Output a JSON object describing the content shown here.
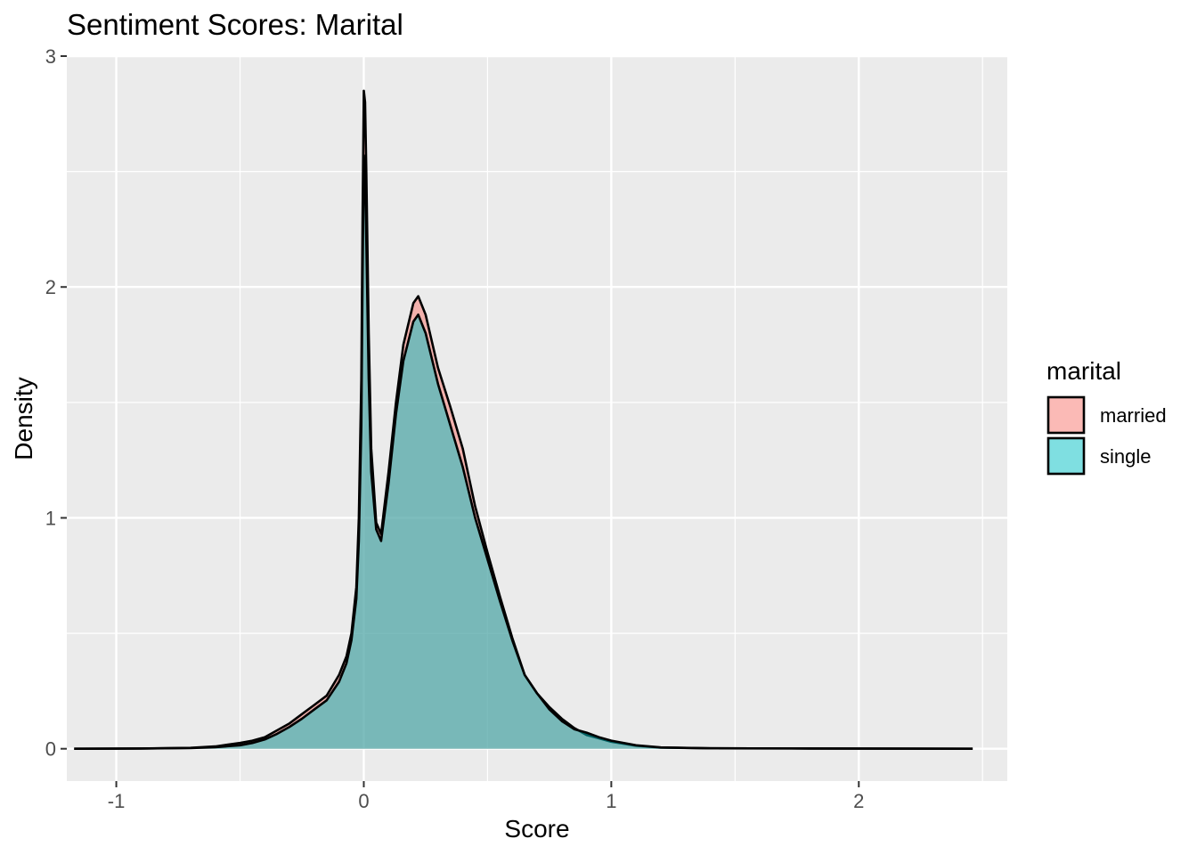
{
  "chart_data": {
    "type": "area",
    "subtype": "density",
    "title": "Sentiment Scores: Marital",
    "xlabel": "Score",
    "ylabel": "Density",
    "xlim": [
      -1.2,
      2.6
    ],
    "ylim": [
      -0.14,
      3.0
    ],
    "x_ticks": [
      -1,
      0,
      1,
      2
    ],
    "x_tick_labels": [
      "-1",
      "0",
      "1",
      "2"
    ],
    "y_ticks": [
      0,
      1,
      2,
      3
    ],
    "y_tick_labels": [
      "0",
      "1",
      "2",
      "3"
    ],
    "grid": true,
    "legend": {
      "title": "marital",
      "position": "right"
    },
    "series": [
      {
        "name": "married",
        "color": "#F8766D",
        "points": [
          [
            -1.17,
            0
          ],
          [
            -0.9,
            0.001
          ],
          [
            -0.7,
            0.004
          ],
          [
            -0.6,
            0.01
          ],
          [
            -0.5,
            0.025
          ],
          [
            -0.45,
            0.035
          ],
          [
            -0.4,
            0.05
          ],
          [
            -0.35,
            0.08
          ],
          [
            -0.3,
            0.11
          ],
          [
            -0.25,
            0.15
          ],
          [
            -0.2,
            0.19
          ],
          [
            -0.15,
            0.23
          ],
          [
            -0.1,
            0.32
          ],
          [
            -0.07,
            0.4
          ],
          [
            -0.05,
            0.5
          ],
          [
            -0.03,
            0.7
          ],
          [
            -0.02,
            1.0
          ],
          [
            -0.01,
            1.6
          ],
          [
            -0.005,
            2.3
          ],
          [
            0.0,
            2.85
          ],
          [
            0.005,
            2.8
          ],
          [
            0.01,
            2.5
          ],
          [
            0.02,
            1.8
          ],
          [
            0.03,
            1.3
          ],
          [
            0.05,
            0.98
          ],
          [
            0.07,
            0.93
          ],
          [
            0.1,
            1.2
          ],
          [
            0.13,
            1.5
          ],
          [
            0.16,
            1.75
          ],
          [
            0.2,
            1.93
          ],
          [
            0.22,
            1.96
          ],
          [
            0.25,
            1.88
          ],
          [
            0.3,
            1.65
          ],
          [
            0.35,
            1.48
          ],
          [
            0.4,
            1.3
          ],
          [
            0.45,
            1.05
          ],
          [
            0.5,
            0.85
          ],
          [
            0.55,
            0.66
          ],
          [
            0.6,
            0.48
          ],
          [
            0.65,
            0.32
          ],
          [
            0.7,
            0.24
          ],
          [
            0.75,
            0.18
          ],
          [
            0.8,
            0.13
          ],
          [
            0.85,
            0.09
          ],
          [
            0.9,
            0.06
          ],
          [
            0.95,
            0.045
          ],
          [
            1.0,
            0.03
          ],
          [
            1.1,
            0.013
          ],
          [
            1.2,
            0.005
          ],
          [
            1.4,
            0.002
          ],
          [
            1.8,
            0.001
          ],
          [
            2.46,
            0
          ]
        ]
      },
      {
        "name": "single",
        "color": "#00BFC4",
        "points": [
          [
            -1.17,
            0
          ],
          [
            -0.9,
            0.001
          ],
          [
            -0.7,
            0.003
          ],
          [
            -0.6,
            0.007
          ],
          [
            -0.5,
            0.015
          ],
          [
            -0.45,
            0.025
          ],
          [
            -0.4,
            0.04
          ],
          [
            -0.35,
            0.065
          ],
          [
            -0.3,
            0.095
          ],
          [
            -0.25,
            0.13
          ],
          [
            -0.2,
            0.17
          ],
          [
            -0.15,
            0.21
          ],
          [
            -0.1,
            0.29
          ],
          [
            -0.07,
            0.37
          ],
          [
            -0.05,
            0.47
          ],
          [
            -0.03,
            0.65
          ],
          [
            -0.02,
            0.9
          ],
          [
            -0.01,
            1.4
          ],
          [
            -0.005,
            2.05
          ],
          [
            0.0,
            2.57
          ],
          [
            0.005,
            2.5
          ],
          [
            0.01,
            2.2
          ],
          [
            0.02,
            1.6
          ],
          [
            0.03,
            1.2
          ],
          [
            0.05,
            0.95
          ],
          [
            0.07,
            0.9
          ],
          [
            0.1,
            1.15
          ],
          [
            0.13,
            1.45
          ],
          [
            0.16,
            1.68
          ],
          [
            0.2,
            1.85
          ],
          [
            0.22,
            1.88
          ],
          [
            0.25,
            1.8
          ],
          [
            0.3,
            1.58
          ],
          [
            0.35,
            1.4
          ],
          [
            0.4,
            1.22
          ],
          [
            0.45,
            1.0
          ],
          [
            0.5,
            0.82
          ],
          [
            0.55,
            0.64
          ],
          [
            0.6,
            0.47
          ],
          [
            0.65,
            0.32
          ],
          [
            0.7,
            0.24
          ],
          [
            0.75,
            0.17
          ],
          [
            0.8,
            0.12
          ],
          [
            0.85,
            0.085
          ],
          [
            0.9,
            0.07
          ],
          [
            0.95,
            0.05
          ],
          [
            1.0,
            0.035
          ],
          [
            1.1,
            0.015
          ],
          [
            1.2,
            0.006
          ],
          [
            1.4,
            0.002
          ],
          [
            1.8,
            0.001
          ],
          [
            2.46,
            0
          ]
        ]
      }
    ]
  }
}
